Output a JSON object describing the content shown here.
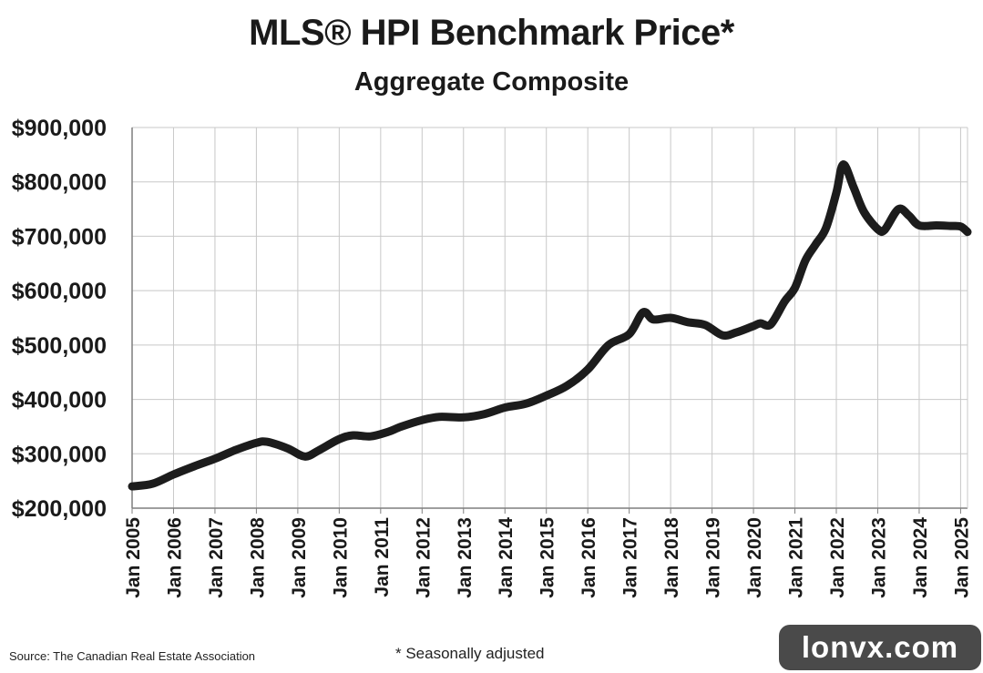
{
  "title": "MLS® HPI Benchmark Price*",
  "subtitle": "Aggregate Composite",
  "source": "Source: The Canadian Real Estate Association",
  "note": "* Seasonally adjusted",
  "watermark": "lonvx.com",
  "colors": {
    "line": "#1c1c1c",
    "grid": "#c8c8c8",
    "axis": "#7f7f7f",
    "watermark_bg": "#4a4a4a"
  },
  "chart_data": {
    "type": "line",
    "title": "MLS® HPI Benchmark Price*",
    "subtitle": "Aggregate Composite",
    "xlabel": "",
    "ylabel": "",
    "xlim": [
      "2005-01",
      "2025-03"
    ],
    "ylim": [
      200000,
      900000
    ],
    "grid": true,
    "legend": "none",
    "y_ticks": [
      {
        "value": 200000,
        "label": "$200,000"
      },
      {
        "value": 300000,
        "label": "$300,000"
      },
      {
        "value": 400000,
        "label": "$400,000"
      },
      {
        "value": 500000,
        "label": "$500,000"
      },
      {
        "value": 600000,
        "label": "$600,000"
      },
      {
        "value": 700000,
        "label": "$700,000"
      },
      {
        "value": 800000,
        "label": "$800,000"
      },
      {
        "value": 900000,
        "label": "$900,000"
      }
    ],
    "x_ticks": [
      {
        "value": "2005-01",
        "label": "Jan 2005"
      },
      {
        "value": "2006-01",
        "label": "Jan 2006"
      },
      {
        "value": "2007-01",
        "label": "Jan 2007"
      },
      {
        "value": "2008-01",
        "label": "Jan 2008"
      },
      {
        "value": "2009-01",
        "label": "Jan 2009"
      },
      {
        "value": "2010-01",
        "label": "Jan 2010"
      },
      {
        "value": "2011-01",
        "label": "Jan 2011"
      },
      {
        "value": "2012-01",
        "label": "Jan 2012"
      },
      {
        "value": "2013-01",
        "label": "Jan 2013"
      },
      {
        "value": "2014-01",
        "label": "Jan 2014"
      },
      {
        "value": "2015-01",
        "label": "Jan 2015"
      },
      {
        "value": "2016-01",
        "label": "Jan 2016"
      },
      {
        "value": "2017-01",
        "label": "Jan 2017"
      },
      {
        "value": "2018-01",
        "label": "Jan 2018"
      },
      {
        "value": "2019-01",
        "label": "Jan 2019"
      },
      {
        "value": "2020-01",
        "label": "Jan 2020"
      },
      {
        "value": "2021-01",
        "label": "Jan 2021"
      },
      {
        "value": "2022-01",
        "label": "Jan 2022"
      },
      {
        "value": "2023-01",
        "label": "Jan 2023"
      },
      {
        "value": "2024-01",
        "label": "Jan 2024"
      },
      {
        "value": "2025-01",
        "label": "Jan 2025"
      }
    ],
    "series": [
      {
        "points": [
          [
            "2005-01",
            240000
          ],
          [
            "2005-07",
            245000
          ],
          [
            "2006-01",
            262000
          ],
          [
            "2006-07",
            277000
          ],
          [
            "2007-01",
            291000
          ],
          [
            "2007-07",
            307000
          ],
          [
            "2008-01",
            320000
          ],
          [
            "2008-04",
            322000
          ],
          [
            "2008-10",
            310000
          ],
          [
            "2009-03",
            295000
          ],
          [
            "2009-07",
            306000
          ],
          [
            "2010-01",
            327000
          ],
          [
            "2010-05",
            334000
          ],
          [
            "2010-10",
            332000
          ],
          [
            "2011-03",
            340000
          ],
          [
            "2011-07",
            350000
          ],
          [
            "2012-01",
            362000
          ],
          [
            "2012-06",
            368000
          ],
          [
            "2013-01",
            367000
          ],
          [
            "2013-07",
            373000
          ],
          [
            "2014-01",
            385000
          ],
          [
            "2014-07",
            392000
          ],
          [
            "2015-01",
            407000
          ],
          [
            "2015-07",
            425000
          ],
          [
            "2016-01",
            455000
          ],
          [
            "2016-07",
            500000
          ],
          [
            "2017-01",
            520000
          ],
          [
            "2017-05",
            560000
          ],
          [
            "2017-08",
            547000
          ],
          [
            "2018-01",
            550000
          ],
          [
            "2018-06",
            542000
          ],
          [
            "2018-11",
            537000
          ],
          [
            "2019-04",
            518000
          ],
          [
            "2019-08",
            523000
          ],
          [
            "2020-01",
            535000
          ],
          [
            "2020-03",
            540000
          ],
          [
            "2020-06",
            538000
          ],
          [
            "2020-10",
            580000
          ],
          [
            "2021-01",
            605000
          ],
          [
            "2021-04",
            655000
          ],
          [
            "2021-07",
            685000
          ],
          [
            "2021-10",
            715000
          ],
          [
            "2022-01",
            780000
          ],
          [
            "2022-03",
            832000
          ],
          [
            "2022-06",
            790000
          ],
          [
            "2022-09",
            745000
          ],
          [
            "2023-01",
            713000
          ],
          [
            "2023-03",
            712000
          ],
          [
            "2023-07",
            750000
          ],
          [
            "2023-10",
            738000
          ],
          [
            "2024-01",
            720000
          ],
          [
            "2024-06",
            720000
          ],
          [
            "2024-10",
            719000
          ],
          [
            "2025-01",
            718000
          ],
          [
            "2025-03",
            708000
          ]
        ]
      }
    ]
  }
}
